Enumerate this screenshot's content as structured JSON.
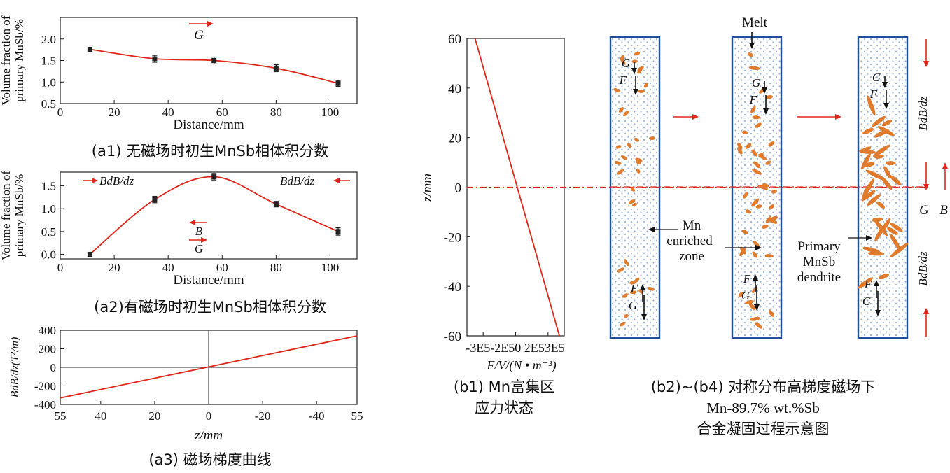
{
  "colors": {
    "curve": "#e0261a",
    "axis": "#222222",
    "marker": "#222222",
    "column_border": "#1f4e9c",
    "melt_dots": "#9ab4d8",
    "crystal": "#e07a2c"
  },
  "chart_data": [
    {
      "id": "a1",
      "type": "line",
      "x": [
        11,
        35,
        57,
        80,
        103
      ],
      "y": [
        1.76,
        1.54,
        1.5,
        1.32,
        0.97
      ],
      "error": [
        0.04,
        0.08,
        0.08,
        0.08,
        0.07
      ],
      "xlabel": "Distance/mm",
      "ylabel": "Volume fraction of primary MnSb/%",
      "ylabel_lines": [
        "Volume fraction of",
        "primary MnSb/%"
      ],
      "xlim": [
        0,
        110
      ],
      "ylim": [
        0.5,
        2.5
      ],
      "xticks": [
        "0",
        "20",
        "40",
        "60",
        "80",
        "100"
      ],
      "yticks": [
        "0.5",
        "1.0",
        "1.5",
        "2.0"
      ],
      "annotations": [
        "G"
      ],
      "caption": "(a1) 无磁场时初生MnSb相体积分数"
    },
    {
      "id": "a2",
      "type": "line",
      "x": [
        11,
        35,
        57,
        80,
        103
      ],
      "y": [
        0.0,
        1.2,
        1.7,
        1.1,
        0.5
      ],
      "error": [
        0.04,
        0.07,
        0.07,
        0.06,
        0.08
      ],
      "xlabel": "Distance/mm",
      "ylabel": "Volume fraction of primary MnSb/%",
      "ylabel_lines": [
        "Volume fraction of",
        "primary MnSb/%"
      ],
      "xlim": [
        0,
        110
      ],
      "ylim": [
        -0.1,
        1.8
      ],
      "xticks": [
        "0",
        "20",
        "40",
        "60",
        "80",
        "100"
      ],
      "yticks": [
        "0.0",
        "0.5",
        "1.0",
        "1.5"
      ],
      "annotations": [
        "BdB/dz",
        "BdB/dz",
        "B",
        "G"
      ],
      "caption": "(a2)有磁场时初生MnSb相体积分数"
    },
    {
      "id": "a3",
      "type": "line",
      "x": [
        55,
        -55
      ],
      "y": [
        -330,
        340
      ],
      "xlabel": "z/mm",
      "ylabel": "BdB/dz(T²/m)",
      "xlim": [
        55,
        -55
      ],
      "ylim": [
        -400,
        400
      ],
      "xticks": [
        "55",
        "40",
        "20",
        "0",
        "-20",
        "-40",
        "55"
      ],
      "yticks": [
        "400",
        "200",
        "0",
        "-200",
        "-400"
      ],
      "caption": "(a3) 磁场梯度曲线"
    },
    {
      "id": "b1",
      "type": "line",
      "x": [
        -250000,
        270000
      ],
      "y": [
        60,
        -60
      ],
      "xlabel": "F/V/(N • m⁻³)",
      "ylabel": "z/mm",
      "xlim": [
        -300000,
        300000
      ],
      "ylim": [
        -60,
        60
      ],
      "xticks": [
        "-3E5",
        "-2E5",
        "0",
        "2E5",
        "3E5"
      ],
      "xtick_label_row": "-3E5-2E50 2E53E5",
      "yticks": [
        "60",
        "40",
        "20",
        "0",
        "-20",
        "-40",
        "-60"
      ],
      "caption_lines": [
        "(b1) Mn富集区",
        "应力状态"
      ]
    }
  ],
  "schematic": {
    "labels": {
      "melt": "Melt",
      "mn_zone": [
        "Mn",
        "enriched",
        "zone"
      ],
      "primary": [
        "Primary",
        "MnSb",
        "dendrite"
      ],
      "g": "G",
      "f": "F",
      "b": "B",
      "bdb": "BdB/dz"
    },
    "caption_lines": [
      "(b2)~(b4) 对称分布高梯度磁场下",
      "Mn-89.7% wt.%Sb",
      "合金凝固过程示意图"
    ]
  }
}
